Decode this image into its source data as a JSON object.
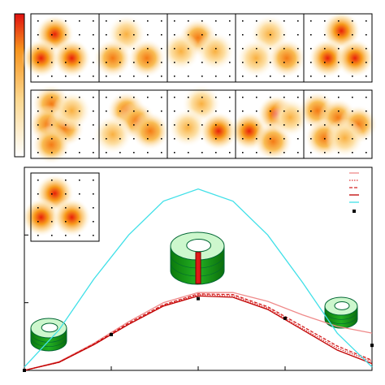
{
  "chart_data": {
    "type": "line",
    "x": [
      0,
      0.1,
      0.2,
      0.3,
      0.4,
      0.5,
      0.6,
      0.7,
      0.8,
      0.9,
      1
    ],
    "series": [
      {
        "color": "#ef8a8a",
        "style": "solid",
        "values": [
          0,
          0.13,
          0.4,
          0.72,
          1.0,
          1.15,
          1.15,
          1.02,
          0.82,
          0.65,
          0.55
        ]
      },
      {
        "color": "#e03030",
        "style": "dotted",
        "values": [
          0,
          0.12,
          0.38,
          0.68,
          0.96,
          1.12,
          1.1,
          0.92,
          0.62,
          0.33,
          0.13
        ]
      },
      {
        "color": "#d42020",
        "style": "dashed",
        "values": [
          0,
          0.12,
          0.39,
          0.7,
          0.97,
          1.13,
          1.12,
          0.94,
          0.65,
          0.36,
          0.15
        ]
      },
      {
        "color": "#c00000",
        "style": "solid",
        "values": [
          0,
          0.12,
          0.38,
          0.68,
          0.95,
          1.1,
          1.08,
          0.9,
          0.6,
          0.3,
          0.1
        ]
      },
      {
        "color": "#40e0e8",
        "style": "solid",
        "values": [
          0.05,
          0.6,
          1.35,
          2.0,
          2.5,
          2.68,
          2.5,
          2.0,
          1.3,
          0.55,
          0.05
        ]
      }
    ],
    "points": {
      "color": "#000000",
      "x": [
        0,
        0.25,
        0.5,
        0.75,
        1
      ],
      "values": [
        0,
        0.53,
        1.06,
        0.77,
        0.37
      ]
    },
    "xlim": [
      0,
      1
    ],
    "ylim": [
      0,
      3
    ],
    "xticks": [
      0,
      0.25,
      0.5,
      0.75,
      1
    ],
    "yticks": [
      0,
      1,
      2,
      3
    ]
  }
}
